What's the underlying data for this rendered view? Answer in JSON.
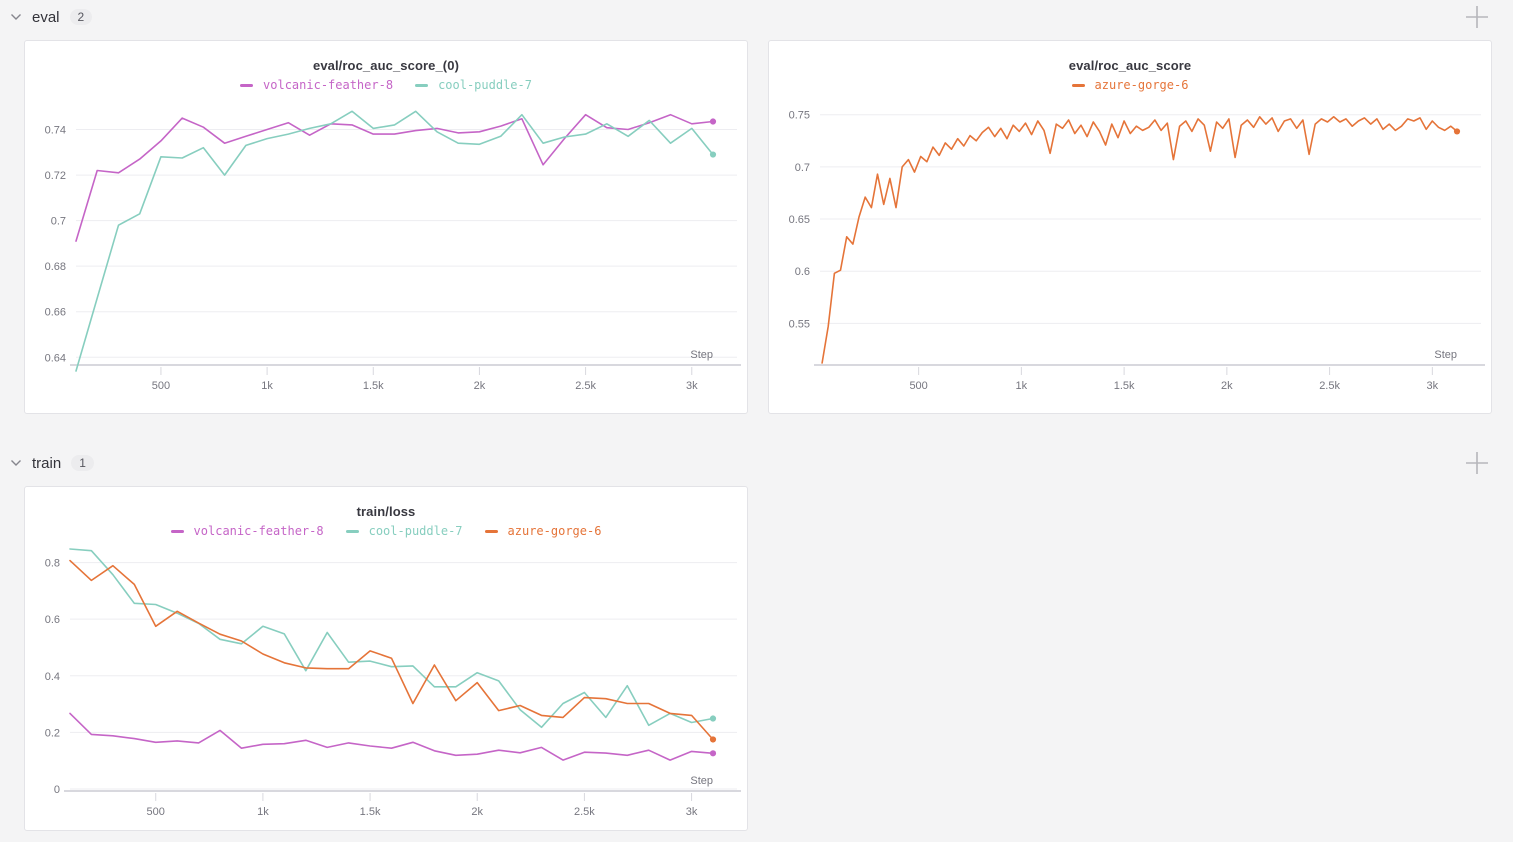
{
  "sections": [
    {
      "label": "eval",
      "count": "2"
    },
    {
      "label": "train",
      "count": "1"
    }
  ],
  "icons": {
    "collapse": "chevron-down-icon",
    "add_panel": "plus-icon"
  },
  "colors": {
    "background": "#f4f4f5",
    "panel_border": "#e3e3e7",
    "grid": "#ededf1",
    "axis": "#d8d8de",
    "tick_text": "#76767f",
    "run_volcanic_feather_8": "#C565C7",
    "run_cool_puddle_7": "#87CEBF",
    "run_azure_gorge_6": "#E57439"
  },
  "chart_data": [
    {
      "type": "line",
      "title": "eval/roc_auc_score_(0)",
      "xlabel": "Step",
      "legend_position": "top",
      "grid": "horizontal",
      "xlim": [
        100,
        3100
      ],
      "ylim": [
        0.6375,
        0.749
      ],
      "xticks": {
        "values": [
          500,
          1000,
          1500,
          2000,
          2500,
          3000
        ],
        "labels": [
          "500",
          "1k",
          "1.5k",
          "2k",
          "2.5k",
          "3k"
        ]
      },
      "yticks": {
        "values": [
          0.64,
          0.66,
          0.68,
          0.7,
          0.72,
          0.74
        ],
        "labels": [
          "0.64",
          "0.66",
          "0.68",
          "0.7",
          "0.72",
          "0.74"
        ]
      },
      "x": [
        100,
        200,
        300,
        400,
        500,
        600,
        700,
        800,
        900,
        1000,
        1100,
        1200,
        1300,
        1400,
        1500,
        1600,
        1700,
        1800,
        1900,
        2000,
        2100,
        2200,
        2300,
        2400,
        2500,
        2600,
        2700,
        2800,
        2900,
        3000,
        3100
      ],
      "series": [
        {
          "name": "volcanic-feather-8",
          "color": "#C565C7",
          "values": [
            0.691,
            0.722,
            0.721,
            0.727,
            0.735,
            0.745,
            0.741,
            0.734,
            0.737,
            0.74,
            0.743,
            0.7375,
            0.7425,
            0.742,
            0.738,
            0.738,
            0.7395,
            0.7405,
            0.7385,
            0.739,
            0.7415,
            0.7447,
            0.7245,
            0.736,
            0.7465,
            0.7408,
            0.74,
            0.743,
            0.7465,
            0.7425,
            0.7435
          ]
        },
        {
          "name": "cool-puddle-7",
          "color": "#87CEBF",
          "values": [
            0.634,
            0.666,
            0.698,
            0.703,
            0.728,
            0.7275,
            0.732,
            0.72,
            0.733,
            0.736,
            0.738,
            0.7405,
            0.7425,
            0.748,
            0.7405,
            0.742,
            0.748,
            0.739,
            0.734,
            0.7335,
            0.737,
            0.7465,
            0.734,
            0.7367,
            0.738,
            0.7425,
            0.737,
            0.744,
            0.734,
            0.7405,
            0.729
          ]
        }
      ]
    },
    {
      "type": "line",
      "title": "eval/roc_auc_score",
      "xlabel": "Step",
      "legend_position": "top",
      "grid": "horizontal",
      "xlim": [
        20,
        3120
      ],
      "ylim": [
        0.512,
        0.7555
      ],
      "xticks": {
        "values": [
          500,
          1000,
          1500,
          2000,
          2500,
          3000
        ],
        "labels": [
          "500",
          "1k",
          "1.5k",
          "2k",
          "2.5k",
          "3k"
        ]
      },
      "yticks": {
        "values": [
          0.55,
          0.6,
          0.65,
          0.7,
          0.75
        ],
        "labels": [
          "0.55",
          "0.6",
          "0.65",
          "0.7",
          "0.75"
        ]
      },
      "x": [
        30,
        60,
        90,
        120,
        150,
        180,
        210,
        240,
        270,
        300,
        330,
        360,
        390,
        420,
        450,
        480,
        510,
        540,
        570,
        600,
        630,
        660,
        690,
        720,
        750,
        780,
        810,
        840,
        870,
        900,
        930,
        960,
        990,
        1020,
        1050,
        1080,
        1110,
        1140,
        1170,
        1200,
        1230,
        1260,
        1290,
        1320,
        1350,
        1380,
        1410,
        1440,
        1470,
        1500,
        1530,
        1560,
        1590,
        1620,
        1650,
        1680,
        1710,
        1740,
        1770,
        1800,
        1830,
        1860,
        1890,
        1920,
        1950,
        1980,
        2010,
        2040,
        2070,
        2100,
        2130,
        2160,
        2190,
        2220,
        2250,
        2280,
        2310,
        2340,
        2370,
        2400,
        2430,
        2460,
        2490,
        2520,
        2550,
        2580,
        2610,
        2640,
        2670,
        2700,
        2730,
        2760,
        2790,
        2820,
        2850,
        2880,
        2910,
        2940,
        2970,
        3000,
        3030,
        3060,
        3090,
        3120
      ],
      "series": [
        {
          "name": "azure-gorge-6",
          "color": "#E57439",
          "values": [
            0.512,
            0.547,
            0.598,
            0.601,
            0.633,
            0.626,
            0.652,
            0.671,
            0.661,
            0.693,
            0.664,
            0.689,
            0.661,
            0.7,
            0.707,
            0.695,
            0.71,
            0.705,
            0.719,
            0.711,
            0.723,
            0.717,
            0.727,
            0.72,
            0.73,
            0.725,
            0.733,
            0.738,
            0.729,
            0.737,
            0.727,
            0.74,
            0.734,
            0.742,
            0.731,
            0.744,
            0.735,
            0.713,
            0.741,
            0.737,
            0.745,
            0.732,
            0.74,
            0.729,
            0.743,
            0.734,
            0.721,
            0.741,
            0.728,
            0.744,
            0.732,
            0.739,
            0.735,
            0.738,
            0.745,
            0.735,
            0.742,
            0.707,
            0.739,
            0.744,
            0.734,
            0.746,
            0.74,
            0.715,
            0.743,
            0.737,
            0.746,
            0.709,
            0.74,
            0.745,
            0.738,
            0.748,
            0.741,
            0.747,
            0.734,
            0.744,
            0.746,
            0.737,
            0.745,
            0.712,
            0.741,
            0.746,
            0.743,
            0.748,
            0.743,
            0.746,
            0.739,
            0.744,
            0.747,
            0.741,
            0.746,
            0.736,
            0.741,
            0.735,
            0.739,
            0.746,
            0.744,
            0.747,
            0.736,
            0.744,
            0.738,
            0.735,
            0.739,
            0.734
          ]
        }
      ]
    },
    {
      "type": "line",
      "title": "train/loss",
      "xlabel": "Step",
      "legend_position": "top",
      "grid": "horizontal",
      "xlim": [
        100,
        3100
      ],
      "ylim": [
        0,
        0.855
      ],
      "xticks": {
        "values": [
          500,
          1000,
          1500,
          2000,
          2500,
          3000
        ],
        "labels": [
          "500",
          "1k",
          "1.5k",
          "2k",
          "2.5k",
          "3k"
        ]
      },
      "yticks": {
        "values": [
          0,
          0.2,
          0.4,
          0.6,
          0.8
        ],
        "labels": [
          "0",
          "0.2",
          "0.4",
          "0.6",
          "0.8"
        ]
      },
      "x": [
        100,
        200,
        300,
        400,
        500,
        600,
        700,
        800,
        900,
        1000,
        1100,
        1200,
        1300,
        1400,
        1500,
        1600,
        1700,
        1800,
        1900,
        2000,
        2100,
        2200,
        2300,
        2400,
        2500,
        2600,
        2700,
        2800,
        2900,
        3000,
        3100
      ],
      "series": [
        {
          "name": "volcanic-feather-8",
          "color": "#C565C7",
          "values": [
            0.267,
            0.193,
            0.188,
            0.178,
            0.165,
            0.17,
            0.163,
            0.207,
            0.144,
            0.158,
            0.16,
            0.172,
            0.147,
            0.163,
            0.152,
            0.144,
            0.165,
            0.135,
            0.119,
            0.123,
            0.137,
            0.128,
            0.147,
            0.102,
            0.13,
            0.127,
            0.119,
            0.137,
            0.102,
            0.133,
            0.126
          ]
        },
        {
          "name": "cool-puddle-7",
          "color": "#87CEBF",
          "values": [
            0.848,
            0.842,
            0.757,
            0.656,
            0.652,
            0.621,
            0.585,
            0.529,
            0.513,
            0.575,
            0.548,
            0.418,
            0.553,
            0.448,
            0.452,
            0.432,
            0.435,
            0.361,
            0.361,
            0.411,
            0.382,
            0.28,
            0.218,
            0.302,
            0.341,
            0.253,
            0.365,
            0.225,
            0.267,
            0.235,
            0.249
          ]
        },
        {
          "name": "azure-gorge-6",
          "color": "#E57439",
          "values": [
            0.807,
            0.737,
            0.789,
            0.723,
            0.575,
            0.628,
            0.586,
            0.547,
            0.523,
            0.477,
            0.446,
            0.428,
            0.425,
            0.425,
            0.488,
            0.462,
            0.302,
            0.438,
            0.312,
            0.376,
            0.277,
            0.295,
            0.26,
            0.253,
            0.323,
            0.319,
            0.302,
            0.302,
            0.267,
            0.26,
            0.175
          ]
        }
      ]
    }
  ]
}
